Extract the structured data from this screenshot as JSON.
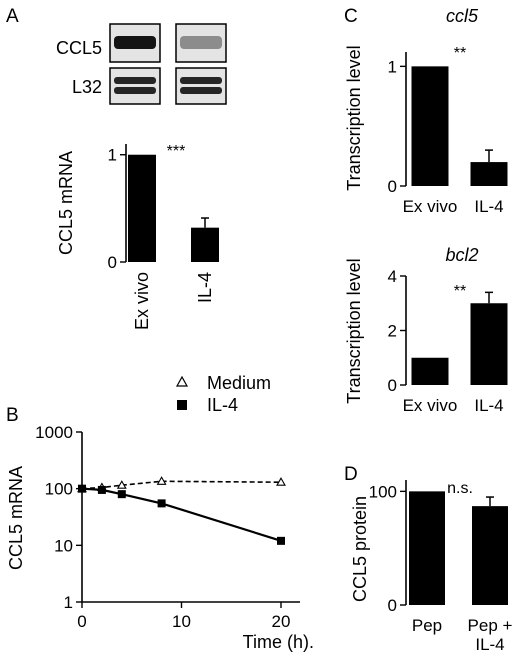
{
  "panels": {
    "A": "A",
    "B": "B",
    "C": "C",
    "D": "D"
  },
  "blot": {
    "rows": [
      "CCL5",
      "L32"
    ],
    "ccl5_band_intensity": [
      0.92,
      0.45
    ],
    "l32_band_intensity": [
      0.85,
      0.85
    ]
  },
  "chart_data": [
    {
      "panel": "A",
      "type": "bar",
      "categories": [
        "Ex vivo",
        "IL-4"
      ],
      "values": [
        1.0,
        0.32
      ],
      "errors": [
        0,
        0.09
      ],
      "ylabel": "CCL5 mRNA",
      "ylim": [
        0,
        1.1
      ],
      "yticks": [
        0,
        1
      ],
      "ytick_labels": [
        "0",
        "1"
      ],
      "significance": "***"
    },
    {
      "panel": "B",
      "type": "line",
      "xlabel": "Time (h).",
      "ylabel": "CCL5 mRNA",
      "yscale": "log",
      "xlim": [
        0,
        22
      ],
      "ylim": [
        1,
        1000
      ],
      "xticks": [
        0,
        10,
        20
      ],
      "xtick_labels": [
        "0",
        "10",
        "20"
      ],
      "yticks": [
        1,
        10,
        100,
        1000
      ],
      "ytick_labels": [
        "1",
        "10",
        "100",
        "1000"
      ],
      "legend_position": "top-right",
      "series": [
        {
          "name": "Medium",
          "marker": "open-triangle",
          "style": "dashed",
          "x": [
            0,
            2,
            4,
            8,
            20
          ],
          "y": [
            100,
            105,
            115,
            135,
            130
          ]
        },
        {
          "name": "IL-4",
          "marker": "filled-square",
          "style": "solid",
          "x": [
            0,
            2,
            4,
            8,
            20
          ],
          "y": [
            100,
            95,
            80,
            55,
            12
          ]
        }
      ]
    },
    {
      "panel": "C",
      "type": "bar",
      "title": "ccl5",
      "categories": [
        "Ex vivo",
        "IL-4"
      ],
      "values": [
        1.0,
        0.2
      ],
      "errors": [
        0,
        0.1
      ],
      "ylabel": "Transcription level",
      "ylim": [
        0,
        1.12
      ],
      "yticks": [
        0,
        1
      ],
      "ytick_labels": [
        "0",
        "1"
      ],
      "significance": "**"
    },
    {
      "panel": "C",
      "type": "bar",
      "title": "bcl2",
      "categories": [
        "Ex vivo",
        "IL-4"
      ],
      "values": [
        1.0,
        3.0
      ],
      "errors": [
        0,
        0.4
      ],
      "ylabel": "Transcription level",
      "ylim": [
        0,
        4
      ],
      "yticks": [
        0,
        2,
        4
      ],
      "ytick_labels": [
        "0",
        "2",
        "4"
      ],
      "significance": "**"
    },
    {
      "panel": "D",
      "type": "bar",
      "categories": [
        "Pep",
        "Pep +\nIL-4"
      ],
      "values": [
        100,
        87
      ],
      "errors": [
        0,
        8
      ],
      "ylabel": "CCL5 protein",
      "ylim": [
        0,
        110
      ],
      "yticks": [
        0,
        100
      ],
      "ytick_labels": [
        "0",
        "100"
      ],
      "significance": "n.s."
    }
  ]
}
